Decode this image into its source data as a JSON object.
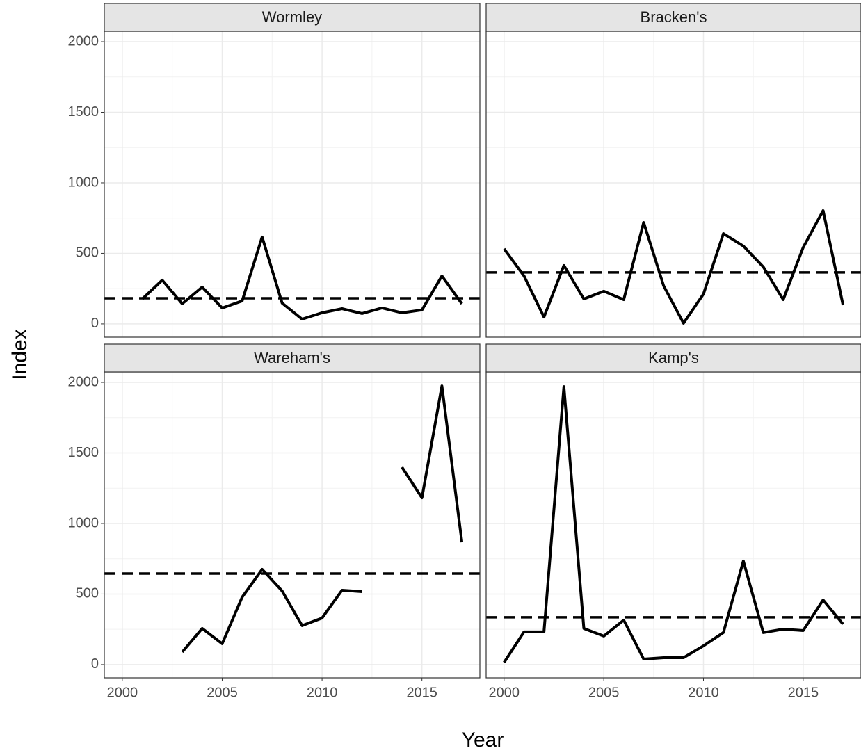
{
  "xlabel": "Year",
  "ylabel": "Index",
  "chart_data": [
    {
      "type": "line",
      "title": "Wormley",
      "x": [
        2001,
        2002,
        2003,
        2004,
        2005,
        2006,
        2007,
        2008,
        2009,
        2010,
        2011,
        2012,
        2013,
        2014,
        2015,
        2016,
        2017
      ],
      "values": [
        177,
        310,
        143,
        261,
        113,
        163,
        616,
        148,
        34,
        79,
        108,
        74,
        113,
        79,
        99,
        340,
        143
      ],
      "hline": 182,
      "color": "#000000",
      "xlim": [
        1999.1,
        2017.9
      ],
      "ylim": [
        -94,
        2074
      ],
      "xticks": [
        2000,
        2005,
        2010,
        2015
      ],
      "yticks": [
        0,
        500,
        1000,
        1500,
        2000
      ],
      "grid": true
    },
    {
      "type": "line",
      "title": "Bracken's",
      "x": [
        2000,
        2001,
        2002,
        2003,
        2004,
        2005,
        2006,
        2007,
        2008,
        2009,
        2010,
        2011,
        2012,
        2013,
        2014,
        2015,
        2016,
        2017
      ],
      "values": [
        532,
        340,
        49,
        414,
        177,
        232,
        172,
        719,
        271,
        5,
        212,
        640,
        552,
        404,
        172,
        542,
        803,
        133
      ],
      "hline": 365,
      "color": "#000000",
      "xlim": [
        1999.1,
        2017.9
      ],
      "ylim": [
        -94,
        2074
      ],
      "xticks": [
        2000,
        2005,
        2010,
        2015
      ],
      "yticks": [
        0,
        500,
        1000,
        1500,
        2000
      ],
      "grid": true
    },
    {
      "type": "line",
      "title": "Wareham's",
      "x": [
        2003,
        2004,
        2005,
        2006,
        2007,
        2008,
        2009,
        2010,
        2011,
        2012,
        2013,
        2014,
        2015,
        2016,
        2017
      ],
      "values": [
        89,
        256,
        148,
        478,
        675,
        522,
        276,
        330,
        527,
        517,
        null,
        1399,
        1182,
        1975,
        867
      ],
      "hline": 645,
      "color": "#000000",
      "xlim": [
        1999.1,
        2017.9
      ],
      "ylim": [
        -94,
        2074
      ],
      "xticks": [
        2000,
        2005,
        2010,
        2015
      ],
      "yticks": [
        0,
        500,
        1000,
        1500,
        2000
      ],
      "grid": true
    },
    {
      "type": "line",
      "title": "Kamp's",
      "x": [
        2000,
        2001,
        2002,
        2003,
        2004,
        2005,
        2006,
        2007,
        2008,
        2009,
        2010,
        2011,
        2012,
        2013,
        2014,
        2015,
        2016,
        2017
      ],
      "values": [
        15,
        232,
        232,
        1970,
        256,
        202,
        315,
        39,
        49,
        49,
        133,
        227,
        734,
        227,
        251,
        241,
        458,
        286
      ],
      "hline": 335,
      "color": "#000000",
      "xlim": [
        1999.1,
        2017.9
      ],
      "ylim": [
        -94,
        2074
      ],
      "xticks": [
        2000,
        2005,
        2010,
        2015
      ],
      "yticks": [
        0,
        500,
        1000,
        1500,
        2000
      ],
      "grid": true
    }
  ]
}
